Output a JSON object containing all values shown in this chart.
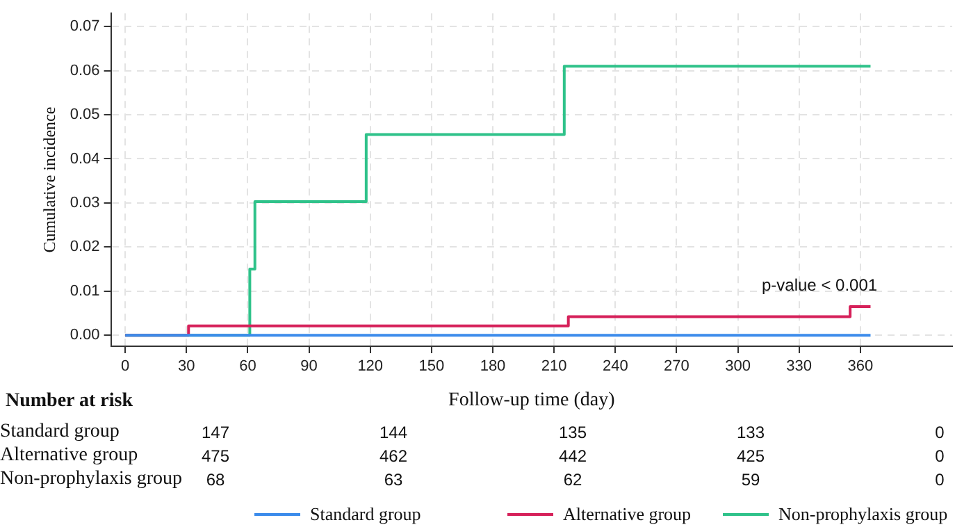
{
  "chart_data": {
    "type": "step",
    "xlabel": "Follow-up time (day)",
    "ylabel": "Cumulative incidence",
    "xlim": [
      -7,
      405
    ],
    "xticks": [
      0,
      30,
      60,
      90,
      120,
      150,
      180,
      210,
      240,
      270,
      300,
      330,
      360
    ],
    "ylim": [
      -0.0025,
      0.073
    ],
    "yticks": [
      {
        "value": 0,
        "label": "0.00"
      },
      {
        "value": 0.01,
        "label": "0.01"
      },
      {
        "value": 0.02,
        "label": "0.02"
      },
      {
        "value": 0.03,
        "label": "0.03"
      },
      {
        "value": 0.04,
        "label": "0.04"
      },
      {
        "value": 0.05,
        "label": "0.05"
      },
      {
        "value": 0.06,
        "label": "0.06"
      },
      {
        "value": 0.07,
        "label": "0.07"
      }
    ],
    "grid": true,
    "legend": "bottom",
    "marker": "none",
    "line_style": "solid",
    "series": [
      {
        "name": "Standard group",
        "color": "#3b8beb",
        "x": [
          0,
          365
        ],
        "values": [
          0,
          0
        ]
      },
      {
        "name": "Alternative group",
        "color": "#d6215a",
        "x": [
          0,
          31,
          217,
          355,
          365
        ],
        "values": [
          0,
          0.0021,
          0.0042,
          0.0065,
          0.0065
        ]
      },
      {
        "name": "Non-prophylaxis group",
        "color": "#2fc28a",
        "x": [
          0,
          61,
          63.5,
          118,
          215,
          365
        ],
        "values": [
          0,
          0.015,
          0.0303,
          0.0455,
          0.061,
          0.061
        ]
      }
    ],
    "annotations": [
      "p-value < 0.001",
      "Number at risk",
      "Standard group",
      "147",
      "144",
      "135",
      "133",
      "0",
      "Alternative group",
      "475",
      "462",
      "442",
      "425",
      "0",
      "Non-prophylaxis group",
      "68",
      "63",
      "62",
      "59",
      "0"
    ]
  }
}
